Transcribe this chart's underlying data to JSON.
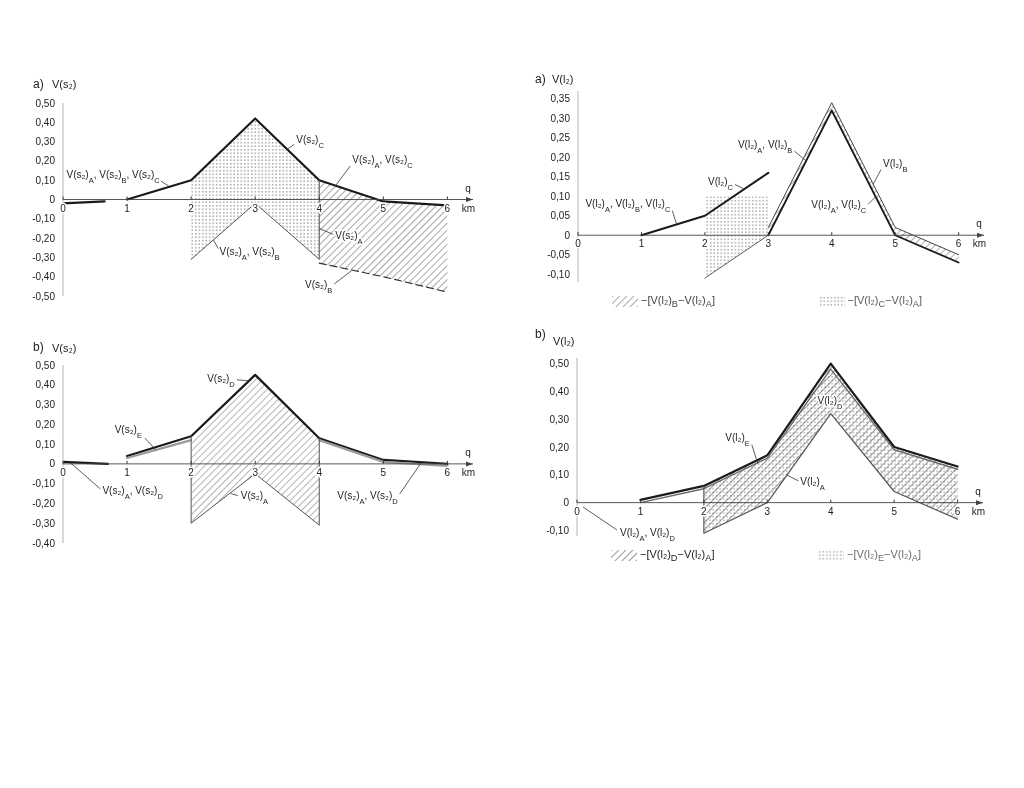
{
  "chart_data": [
    {
      "type": "line",
      "title": "a)",
      "xlabel": "q",
      "ylabel": "V(s₂)",
      "xlim": [
        0,
        6.4
      ],
      "xticks": [
        0,
        1,
        2,
        3,
        4,
        5,
        6
      ],
      "ylim": [
        -0.5,
        0.5
      ],
      "yticks": [
        {
          "value": 0.5,
          "label": "0,50"
        },
        {
          "value": 0.4,
          "label": "0,40"
        },
        {
          "value": 0.3,
          "label": "0,30"
        },
        {
          "value": 0.2,
          "label": "0,20"
        },
        {
          "value": 0.1,
          "label": "0,10"
        },
        {
          "value": 0,
          "label": "0"
        },
        {
          "value": -0.1,
          "label": "-0,10"
        },
        {
          "value": -0.2,
          "label": "-0,20"
        },
        {
          "value": -0.3,
          "label": "-0,30"
        },
        {
          "value": -0.4,
          "label": "-0,40"
        },
        {
          "value": -0.5,
          "label": "-0,50"
        }
      ],
      "series": [
        {
          "type": "line",
          "color": "#1a1a1a",
          "x": [
            0,
            0.65,
            0.8,
            1,
            2,
            3,
            4,
            5,
            6
          ],
          "values": [
            -0.02,
            -0.01,
            null,
            0,
            0.1,
            0.42,
            0.1,
            -0.01,
            -0.03
          ]
        },
        {
          "type": "line",
          "color": "#555555",
          "x": [
            2,
            3,
            4,
            4
          ],
          "values": [
            -0.31,
            -0.02,
            -0.31,
            0.1
          ],
          "lower": [
            -0.31,
            -0.02,
            -0.31,
            null
          ],
          "upper": [
            0.1,
            0.42,
            0.1,
            null
          ]
        },
        {
          "type": "line",
          "color": "#333333",
          "line_style": "dashed",
          "x": [
            4,
            5,
            6
          ],
          "values": [
            -0.33,
            -0.4,
            -0.48
          ],
          "lower": [
            -0.33,
            -0.4,
            -0.48
          ],
          "upper": [
            0.1,
            -0.01,
            -0.03
          ]
        }
      ],
      "annotations": [
        {
          "text": "V(s₂)$_{A}$, V(s₂)$_{B}$, V(s₂)$_{C}$",
          "x": 1.65,
          "y": 0.07
        },
        {
          "text": "V(s₂)$_{C}$",
          "x": 3.5,
          "y": 0.26
        },
        {
          "text": "V(s₂)$_{A}$, V(s₂)$_{C}$",
          "x": 4.25,
          "y": 0.07
        },
        {
          "text": "V(s₂)$_{A}$, V(s₂)$_{B}$",
          "x": 2.35,
          "y": -0.21
        },
        {
          "text": "V(s₂)$_{A}$",
          "x": 4,
          "y": -0.15
        },
        {
          "text": "V(s₂)$_{B}$",
          "x": 4.5,
          "y": -0.37
        },
        "km"
      ]
    },
    {
      "type": "line",
      "title": "b)",
      "xlabel": "q",
      "ylabel": "V(s₂)",
      "xlim": [
        0,
        6.4
      ],
      "xticks": [
        0,
        1,
        2,
        3,
        4,
        5,
        6
      ],
      "ylim": [
        -0.4,
        0.5
      ],
      "yticks": [
        {
          "value": 0.5,
          "label": "0,50"
        },
        {
          "value": 0.4,
          "label": "0,40"
        },
        {
          "value": 0.3,
          "label": "0,30"
        },
        {
          "value": 0.2,
          "label": "0,20"
        },
        {
          "value": 0.1,
          "label": "0,10"
        },
        {
          "value": 0,
          "label": "0"
        },
        {
          "value": -0.1,
          "label": "-0,10"
        },
        {
          "value": -0.2,
          "label": "-0,20"
        },
        {
          "value": -0.3,
          "label": "-0,30"
        },
        {
          "value": -0.4,
          "label": "-0,40"
        }
      ],
      "series": [
        {
          "type": "line",
          "color": "#1a1a1a",
          "x": [
            0,
            0.7,
            0.85,
            1,
            2,
            3,
            4,
            5,
            6
          ],
          "values": [
            0.01,
            0,
            null,
            0.04,
            0.14,
            0.45,
            0.13,
            0.02,
            0
          ]
        },
        {
          "type": "line",
          "color": "#9a9a9a",
          "x": [
            1,
            2,
            3,
            4,
            5,
            6
          ],
          "values": [
            0.03,
            0.12,
            null,
            0.12,
            0.01,
            -0.01
          ]
        },
        {
          "type": "line",
          "color": "#555555",
          "x": [
            2,
            2,
            3,
            4,
            4
          ],
          "values": [
            0.14,
            -0.3,
            -0.05,
            -0.31,
            0.13
          ],
          "lower": [
            null,
            -0.3,
            -0.05,
            -0.31,
            null
          ],
          "upper": [
            null,
            0.14,
            0.45,
            0.13,
            null
          ]
        }
      ],
      "annotations": [
        {
          "text": "V(s₂)$_{D}$",
          "x": 2.9,
          "y": 0.42
        },
        {
          "text": "V(s₂)$_{E}$",
          "x": 1.45,
          "y": 0.07
        },
        {
          "text": "V(s₂)$_{A}$, V(s₂)$_{D}$",
          "x": 0.1,
          "y": 0.01
        },
        {
          "text": "V(s₂)$_{A}$",
          "x": 2.62,
          "y": -0.15
        },
        {
          "text": "V(s₂)$_{A}$, V(s₂)$_{D}$",
          "x": 5.6,
          "y": 0.01
        },
        "km"
      ]
    },
    {
      "type": "line",
      "title": "a)",
      "xlabel": "q",
      "ylabel": "V(l₂)",
      "xlim": [
        0,
        6.4
      ],
      "xticks": [
        0,
        1,
        2,
        3,
        4,
        5,
        6
      ],
      "ylim": [
        -0.12,
        0.37
      ],
      "yticks": [
        {
          "value": 0.35,
          "label": "0,35"
        },
        {
          "value": 0.3,
          "label": "0,30"
        },
        {
          "value": 0.25,
          "label": "0,25"
        },
        {
          "value": 0.2,
          "label": "0,20"
        },
        {
          "value": 0.15,
          "label": "0,15"
        },
        {
          "value": 0.1,
          "label": "0,10"
        },
        {
          "value": 0.05,
          "label": "0,05"
        },
        {
          "value": 0,
          "label": "0"
        },
        {
          "value": -0.05,
          "label": "-0,05"
        },
        {
          "value": -0.1,
          "label": "-0,10"
        }
      ],
      "legend": "bottom",
      "series": [
        {
          "type": "line",
          "color": "#1a1a1a",
          "x": [
            1,
            2,
            3
          ],
          "values": [
            0,
            0.05,
            0.16
          ]
        },
        {
          "type": "line",
          "color": "#1a1a1a",
          "x": [
            3,
            4,
            5,
            6
          ],
          "values": [
            0,
            0.32,
            0,
            -0.07
          ]
        },
        {
          "type": "line",
          "name": "−[V(l₂)$_{B}$−V(l₂)$_{A}$]",
          "color": "#444444",
          "x": [
            3,
            4,
            5,
            6
          ],
          "values": [
            0.02,
            0.34,
            0.02,
            -0.05
          ],
          "lower": [
            0,
            0.32,
            0,
            -0.07
          ],
          "upper": [
            0.02,
            0.34,
            0.02,
            -0.05
          ]
        },
        {
          "type": "line",
          "name": "−[V(l₂)$_{C}$−V(l₂)$_{A}$]",
          "color": "#5a5a5a",
          "x": [
            2,
            3
          ],
          "values": [
            -0.11,
            0
          ],
          "lower": [
            -0.11,
            0
          ],
          "upper": [
            0.1,
            0.1
          ]
        }
      ],
      "annotations": [
        {
          "text": "V(l₂)$_{A}$, V(l₂)$_{B}$, V(l₂)$_{C}$",
          "x": 1.55,
          "y": 0.03
        },
        {
          "text": "V(l₂)$_{C}$",
          "x": 2.6,
          "y": 0.12
        },
        {
          "text": "V(l₂)$_{A}$, V(l₂)$_{B}$",
          "x": 3.6,
          "y": 0.19
        },
        {
          "text": "V(l₂)$_{B}$",
          "x": 4.65,
          "y": 0.13
        },
        {
          "text": "V(l₂)$_{A}$, V(l₂)$_{C}$",
          "x": 4.7,
          "y": 0.1
        },
        "km"
      ]
    },
    {
      "type": "line",
      "title": "b)",
      "xlabel": "q",
      "ylabel": "V(l₂)",
      "xlim": [
        0,
        6.4
      ],
      "xticks": [
        0,
        1,
        2,
        3,
        4,
        5,
        6
      ],
      "ylim": [
        -0.12,
        0.52
      ],
      "yticks": [
        {
          "value": 0.5,
          "label": "0,50"
        },
        {
          "value": 0.4,
          "label": "0,40"
        },
        {
          "value": 0.3,
          "label": "0,30"
        },
        {
          "value": 0.2,
          "label": "0,20"
        },
        {
          "value": 0.1,
          "label": "0,10"
        },
        {
          "value": 0,
          "label": "0"
        },
        {
          "value": -0.1,
          "label": "-0,10"
        }
      ],
      "legend": "bottom",
      "series": [
        {
          "type": "line",
          "name": "−[V(l₂)$_{D}$−V(l₂)$_{A}$]",
          "color": "#1a1a1a",
          "x": [
            1,
            2,
            3,
            4,
            5,
            6
          ],
          "values": [
            0.01,
            0.06,
            0.17,
            0.5,
            0.2,
            0.13
          ],
          "lower": [
            null,
            -0.11,
            0,
            0.32,
            0.04,
            -0.06
          ],
          "upper": [
            null,
            0.06,
            0.17,
            0.5,
            0.2,
            0.13
          ]
        },
        {
          "type": "line",
          "name": "−[V(l₂)$_{E}$−V(l₂)$_{A}$]",
          "color": "#6a6a6a",
          "x": [
            1,
            2,
            3,
            4,
            5,
            6
          ],
          "values": [
            0,
            0.05,
            0.16,
            0.48,
            0.19,
            0.12
          ],
          "lower": [
            null,
            -0.11,
            0,
            0.32,
            0.04,
            -0.06
          ],
          "upper": [
            null,
            0.05,
            0.16,
            0.48,
            0.19,
            0.12
          ]
        },
        {
          "type": "line",
          "color": "#555555",
          "x": [
            2,
            2,
            3,
            4,
            5,
            6
          ],
          "values": [
            0.06,
            -0.11,
            0,
            0.32,
            0.04,
            -0.06
          ]
        }
      ],
      "annotations": [
        {
          "text": "V(l₂)$_{E}$",
          "x": 2.85,
          "y": 0.14
        },
        {
          "text": "V(l₂)$_{A}$",
          "x": 3.3,
          "y": 0.1
        },
        "V(l₂)$_{D}$",
        "V(l₂)$_{A}$, V(l₂)$_{D}$",
        "km"
      ]
    }
  ]
}
